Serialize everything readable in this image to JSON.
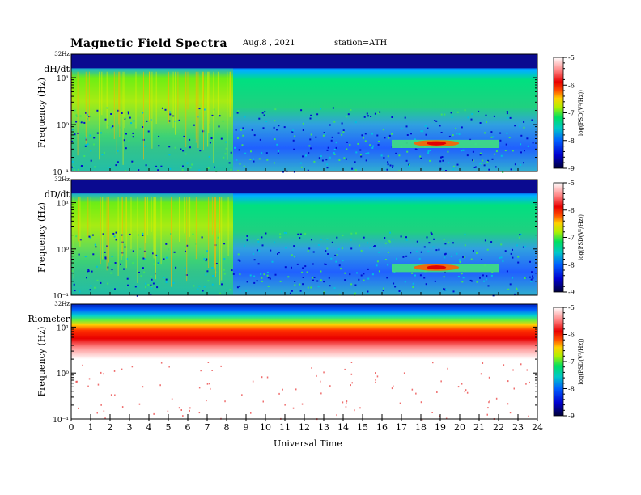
{
  "header": {
    "title": "Magnetic  Field  Spectra",
    "date": "Aug.8  , 2021",
    "station": "station=ATH"
  },
  "chart_data": {
    "type": "heatmap",
    "title": "Magnetic  Field  Spectra",
    "xlabel": "Universal  Time",
    "x_ticks": [
      "0",
      "1",
      "2",
      "3",
      "4",
      "5",
      "6",
      "7",
      "8",
      "9",
      "10",
      "11",
      "12",
      "13",
      "14",
      "15",
      "16",
      "17",
      "18",
      "19",
      "20",
      "21",
      "22",
      "23",
      "24"
    ],
    "xlim": [
      0,
      24
    ],
    "y_scale": "log",
    "panels": [
      {
        "name": "dH/dt",
        "ylabel": "Frequency  (Hz)",
        "top_label": "32Hz",
        "y_ticks": [
          "10¹",
          "10⁰",
          "10⁻¹"
        ],
        "colorbar_label": "log(PSD(V²/Hz))",
        "colorbar_ticks": [
          "-5",
          "-6",
          "-7",
          "-8",
          "-9"
        ],
        "colorbar_range": [
          -9,
          -5
        ]
      },
      {
        "name": "dD/dt",
        "ylabel": "Frequency  (Hz)",
        "top_label": "32Hz",
        "y_ticks": [
          "10¹",
          "10⁰",
          "10⁻¹"
        ],
        "colorbar_label": "log(PSD(V²/Hz))",
        "colorbar_ticks": [
          "-5",
          "-6",
          "-7",
          "-8",
          "-9"
        ],
        "colorbar_range": [
          -9,
          -5
        ]
      },
      {
        "name": "Riometer",
        "ylabel": "Frequency  (Hz)",
        "top_label": "32Hz",
        "y_ticks": [
          "10¹",
          "10⁰",
          "10⁻¹"
        ],
        "colorbar_label": "log(PSD(V²/Hz))",
        "colorbar_ticks": [
          "-5",
          "-6",
          "-7",
          "-8",
          "-9"
        ],
        "colorbar_range": [
          -9,
          -5
        ]
      }
    ]
  }
}
